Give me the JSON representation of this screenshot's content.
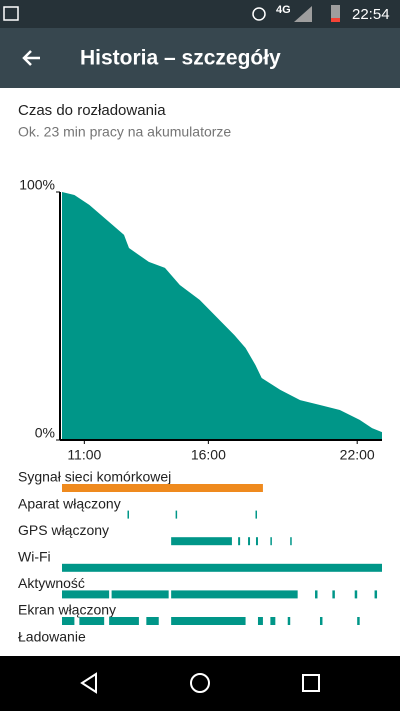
{
  "status_bar": {
    "network": "4G",
    "time": "22:54"
  },
  "app_bar": {
    "title": "Historia – szczegóły"
  },
  "summary": {
    "heading": "Czas do rozładowania",
    "estimate": "Ok. 23 min pracy na akumulatorze"
  },
  "chart_data": {
    "type": "area",
    "x": [
      10.1,
      10.6,
      11.2,
      12.0,
      12.6,
      12.8,
      13.6,
      14.25,
      14.85,
      15.65,
      16.25,
      17.05,
      17.5,
      17.9,
      18.15,
      18.9,
      19.7,
      20.5,
      21.3,
      22.1,
      22.6,
      23.0
    ],
    "values": [
      100,
      98.8,
      94.8,
      87.9,
      82.7,
      77.4,
      71.8,
      69.4,
      62.5,
      56.5,
      50.4,
      42.3,
      37.1,
      30.2,
      25.0,
      20.2,
      16.1,
      14.1,
      12.1,
      8.1,
      4.8,
      3.2
    ],
    "color": "#009688",
    "xlim": [
      10.1,
      23.0
    ],
    "ylim": [
      0,
      100
    ],
    "xticks": [
      {
        "value": 11,
        "label": "11:00"
      },
      {
        "value": 16,
        "label": "16:00"
      },
      {
        "value": 22,
        "label": "22:00"
      }
    ],
    "yticks": [
      {
        "value": 0,
        "label": "0%"
      },
      {
        "value": 100,
        "label": "100%"
      }
    ]
  },
  "timeline": {
    "xlim": [
      10.1,
      23.0
    ],
    "rows": [
      {
        "label": "Sygnał sieci komórkowej",
        "color": "#ef8a1e",
        "segments": [
          [
            10.1,
            18.2
          ]
        ]
      },
      {
        "label": "Aparat włączony",
        "color": "#009688",
        "segments": [
          [
            12.74,
            12.8
          ],
          [
            14.68,
            14.74
          ],
          [
            17.9,
            17.96
          ]
        ]
      },
      {
        "label": "GPS włączony",
        "color": "#009688",
        "segments": [
          [
            14.5,
            16.95
          ],
          [
            17.2,
            17.28
          ],
          [
            17.6,
            17.68
          ],
          [
            17.92,
            18.0
          ],
          [
            18.5,
            18.56
          ],
          [
            19.3,
            19.36
          ]
        ]
      },
      {
        "label": "Wi-Fi",
        "color": "#009688",
        "segments": [
          [
            10.1,
            23.0
          ]
        ]
      },
      {
        "label": "Aktywność",
        "color": "#009688",
        "segments": [
          [
            10.1,
            12.0
          ],
          [
            12.1,
            14.4
          ],
          [
            14.5,
            19.6
          ],
          [
            20.3,
            20.4
          ],
          [
            21.0,
            21.1
          ],
          [
            21.9,
            22.0
          ],
          [
            22.7,
            22.8
          ]
        ]
      },
      {
        "label": "Ekran włączony",
        "color": "#009688",
        "segments": [
          [
            10.1,
            10.6
          ],
          [
            10.8,
            11.8
          ],
          [
            12.0,
            13.2
          ],
          [
            13.5,
            14.0
          ],
          [
            14.5,
            17.5
          ],
          [
            18.0,
            18.2
          ],
          [
            18.5,
            18.7
          ],
          [
            19.2,
            19.3
          ],
          [
            20.5,
            20.6
          ],
          [
            22.0,
            22.1
          ]
        ]
      },
      {
        "label": "Ładowanie",
        "color": "#009688",
        "segments": []
      }
    ]
  }
}
